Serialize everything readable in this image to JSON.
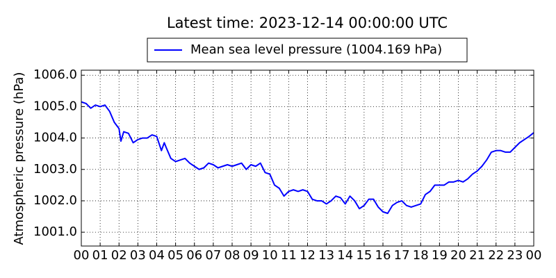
{
  "chart_data": {
    "type": "line",
    "title": "Latest time: 2023-12-14 00:00:00 UTC",
    "y_label": "Atmospheric pressure (hPa)",
    "x": [
      0,
      0.25,
      0.5,
      0.75,
      1,
      1.25,
      1.5,
      1.75,
      2,
      2.1,
      2.25,
      2.5,
      2.75,
      3,
      3.25,
      3.5,
      3.75,
      4,
      4.25,
      4.4,
      4.5,
      4.75,
      5,
      5.25,
      5.5,
      5.75,
      6,
      6.25,
      6.5,
      6.75,
      7,
      7.25,
      7.5,
      7.75,
      8,
      8.25,
      8.5,
      8.75,
      9,
      9.25,
      9.5,
      9.75,
      10,
      10.25,
      10.5,
      10.75,
      11,
      11.25,
      11.5,
      11.75,
      12,
      12.25,
      12.5,
      12.75,
      13,
      13.25,
      13.5,
      13.75,
      14,
      14.25,
      14.5,
      14.75,
      15,
      15.25,
      15.5,
      15.75,
      16,
      16.25,
      16.5,
      16.75,
      17,
      17.25,
      17.5,
      17.75,
      18,
      18.25,
      18.5,
      18.75,
      19,
      19.25,
      19.5,
      19.75,
      20,
      20.25,
      20.5,
      20.75,
      21,
      21.25,
      21.5,
      21.75,
      22,
      22.25,
      22.5,
      22.75,
      23,
      23.25,
      23.5,
      23.75,
      24
    ],
    "series": [
      {
        "name": "Mean sea level pressure (1004.169 hPa)",
        "color": "#0000ff",
        "values": [
          1005.15,
          1005.1,
          1004.95,
          1005.05,
          1005.0,
          1005.05,
          1004.85,
          1004.5,
          1004.3,
          1003.9,
          1004.2,
          1004.15,
          1003.85,
          1003.95,
          1004.0,
          1004.0,
          1004.1,
          1004.05,
          1003.6,
          1003.85,
          1003.7,
          1003.35,
          1003.25,
          1003.3,
          1003.35,
          1003.2,
          1003.1,
          1003.0,
          1003.05,
          1003.2,
          1003.15,
          1003.05,
          1003.1,
          1003.15,
          1003.1,
          1003.15,
          1003.2,
          1003.0,
          1003.15,
          1003.1,
          1003.2,
          1002.9,
          1002.85,
          1002.5,
          1002.4,
          1002.15,
          1002.3,
          1002.35,
          1002.3,
          1002.35,
          1002.3,
          1002.05,
          1002.0,
          1002.0,
          1001.9,
          1002.0,
          1002.15,
          1002.1,
          1001.9,
          1002.15,
          1002.0,
          1001.75,
          1001.85,
          1002.05,
          1002.05,
          1001.8,
          1001.65,
          1001.6,
          1001.85,
          1001.95,
          1002.0,
          1001.85,
          1001.8,
          1001.85,
          1001.9,
          1002.2,
          1002.3,
          1002.5,
          1002.5,
          1002.5,
          1002.6,
          1002.6,
          1002.65,
          1002.6,
          1002.7,
          1002.85,
          1002.95,
          1003.1,
          1003.3,
          1003.55,
          1003.6,
          1003.6,
          1003.55,
          1003.55,
          1003.7,
          1003.85,
          1003.95,
          1004.05,
          1004.169
        ]
      }
    ],
    "xlim": [
      0,
      24
    ],
    "xticks": [
      {
        "value": 0,
        "label": "00"
      },
      {
        "value": 1,
        "label": "01"
      },
      {
        "value": 2,
        "label": "02"
      },
      {
        "value": 3,
        "label": "03"
      },
      {
        "value": 4,
        "label": "04"
      },
      {
        "value": 5,
        "label": "05"
      },
      {
        "value": 6,
        "label": "06"
      },
      {
        "value": 7,
        "label": "07"
      },
      {
        "value": 8,
        "label": "08"
      },
      {
        "value": 9,
        "label": "09"
      },
      {
        "value": 10,
        "label": "10"
      },
      {
        "value": 11,
        "label": "11"
      },
      {
        "value": 12,
        "label": "12"
      },
      {
        "value": 13,
        "label": "13"
      },
      {
        "value": 14,
        "label": "14"
      },
      {
        "value": 15,
        "label": "15"
      },
      {
        "value": 16,
        "label": "16"
      },
      {
        "value": 17,
        "label": "17"
      },
      {
        "value": 18,
        "label": "18"
      },
      {
        "value": 19,
        "label": "19"
      },
      {
        "value": 20,
        "label": "20"
      },
      {
        "value": 21,
        "label": "21"
      },
      {
        "value": 22,
        "label": "22"
      },
      {
        "value": 23,
        "label": "23"
      },
      {
        "value": 24,
        "label": "00"
      }
    ],
    "ylim": [
      1000.56,
      1006.16
    ],
    "yticks": [
      {
        "value": 1001,
        "label": "1001.0"
      },
      {
        "value": 1002,
        "label": "1002.0"
      },
      {
        "value": 1003,
        "label": "1003.0"
      },
      {
        "value": 1004,
        "label": "1004.0"
      },
      {
        "value": 1005,
        "label": "1005.0"
      },
      {
        "value": 1006,
        "label": "1006.0"
      }
    ],
    "grid": true,
    "legend": "top"
  }
}
